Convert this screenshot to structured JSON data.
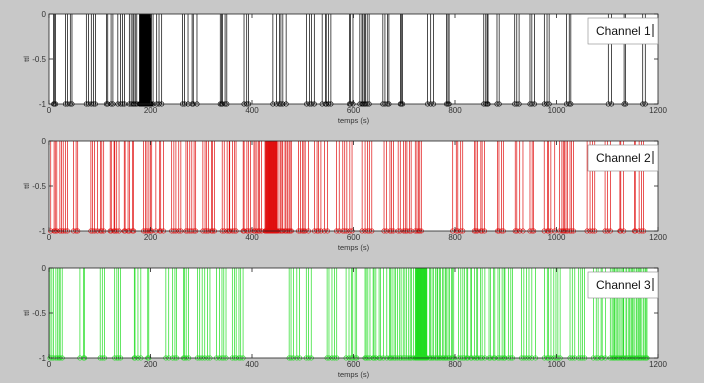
{
  "window": {
    "background": "#c8c8c8"
  },
  "chart_data": [
    {
      "type": "stem",
      "legend": "Channel 1",
      "color": "#000000",
      "xlabel": "temps (s)",
      "ylabel": "ttl",
      "xlim": [
        0,
        1200
      ],
      "ylim": [
        -1,
        0
      ],
      "xticks": [
        "0",
        "200",
        "400",
        "600",
        "800",
        "1000",
        "1200"
      ],
      "yticks": [
        "0",
        "-0.5",
        "-1"
      ],
      "events": [
        {
          "start": 8,
          "end": 14,
          "count": 3
        },
        {
          "start": 28,
          "end": 50,
          "count": 4
        },
        {
          "start": 70,
          "end": 95,
          "count": 5
        },
        {
          "start": 110,
          "end": 130,
          "count": 4
        },
        {
          "start": 135,
          "end": 150,
          "count": 4
        },
        {
          "start": 158,
          "end": 175,
          "count": 6
        },
        {
          "start": 178,
          "end": 202,
          "count": 48
        },
        {
          "start": 205,
          "end": 225,
          "count": 4
        },
        {
          "start": 260,
          "end": 295,
          "count": 6
        },
        {
          "start": 335,
          "end": 352,
          "count": 5
        },
        {
          "start": 383,
          "end": 395,
          "count": 3
        },
        {
          "start": 440,
          "end": 470,
          "count": 6
        },
        {
          "start": 505,
          "end": 525,
          "count": 4
        },
        {
          "start": 538,
          "end": 558,
          "count": 5
        },
        {
          "start": 590,
          "end": 600,
          "count": 3
        },
        {
          "start": 612,
          "end": 632,
          "count": 7
        },
        {
          "start": 655,
          "end": 672,
          "count": 4
        },
        {
          "start": 690,
          "end": 700,
          "count": 3
        },
        {
          "start": 745,
          "end": 760,
          "count": 3
        },
        {
          "start": 782,
          "end": 790,
          "count": 3
        },
        {
          "start": 855,
          "end": 868,
          "count": 4
        },
        {
          "start": 880,
          "end": 892,
          "count": 2
        },
        {
          "start": 915,
          "end": 930,
          "count": 3
        },
        {
          "start": 945,
          "end": 960,
          "count": 3
        },
        {
          "start": 975,
          "end": 990,
          "count": 3
        },
        {
          "start": 1018,
          "end": 1030,
          "count": 3
        },
        {
          "start": 1100,
          "end": 1110,
          "count": 2
        },
        {
          "start": 1130,
          "end": 1140,
          "count": 2
        },
        {
          "start": 1168,
          "end": 1178,
          "count": 2
        }
      ]
    },
    {
      "type": "stem",
      "legend": "Channel 2",
      "color": "#e01010",
      "xlabel": "temps (s)",
      "ylabel": "ttl",
      "xlim": [
        0,
        1200
      ],
      "ylim": [
        -1,
        0
      ],
      "xticks": [
        "0",
        "200",
        "400",
        "600",
        "800",
        "1000",
        "1200"
      ],
      "yticks": [
        "0",
        "-0.5",
        "-1"
      ],
      "events": [
        {
          "start": 3,
          "end": 40,
          "count": 9
        },
        {
          "start": 48,
          "end": 58,
          "count": 3
        },
        {
          "start": 80,
          "end": 112,
          "count": 7
        },
        {
          "start": 118,
          "end": 140,
          "count": 6
        },
        {
          "start": 145,
          "end": 170,
          "count": 6
        },
        {
          "start": 185,
          "end": 205,
          "count": 6
        },
        {
          "start": 210,
          "end": 230,
          "count": 4
        },
        {
          "start": 240,
          "end": 262,
          "count": 5
        },
        {
          "start": 268,
          "end": 292,
          "count": 6
        },
        {
          "start": 300,
          "end": 330,
          "count": 7
        },
        {
          "start": 340,
          "end": 372,
          "count": 8
        },
        {
          "start": 380,
          "end": 398,
          "count": 5
        },
        {
          "start": 402,
          "end": 420,
          "count": 6
        },
        {
          "start": 425,
          "end": 430,
          "count": 4
        },
        {
          "start": 430,
          "end": 450,
          "count": 40
        },
        {
          "start": 452,
          "end": 480,
          "count": 10
        },
        {
          "start": 490,
          "end": 512,
          "count": 6
        },
        {
          "start": 520,
          "end": 550,
          "count": 6
        },
        {
          "start": 565,
          "end": 600,
          "count": 7
        },
        {
          "start": 615,
          "end": 640,
          "count": 5
        },
        {
          "start": 660,
          "end": 682,
          "count": 5
        },
        {
          "start": 688,
          "end": 715,
          "count": 7
        },
        {
          "start": 720,
          "end": 735,
          "count": 5
        },
        {
          "start": 795,
          "end": 818,
          "count": 5
        },
        {
          "start": 835,
          "end": 862,
          "count": 6
        },
        {
          "start": 880,
          "end": 900,
          "count": 4
        },
        {
          "start": 915,
          "end": 935,
          "count": 4
        },
        {
          "start": 945,
          "end": 958,
          "count": 3
        },
        {
          "start": 975,
          "end": 998,
          "count": 5
        },
        {
          "start": 1005,
          "end": 1035,
          "count": 9
        },
        {
          "start": 1060,
          "end": 1080,
          "count": 4
        },
        {
          "start": 1095,
          "end": 1110,
          "count": 3
        },
        {
          "start": 1122,
          "end": 1135,
          "count": 3
        },
        {
          "start": 1150,
          "end": 1175,
          "count": 5
        }
      ]
    },
    {
      "type": "stem",
      "legend": "Channel 3",
      "color": "#22dd22",
      "xlabel": "temps (s)",
      "ylabel": "ttl",
      "xlim": [
        0,
        1200
      ],
      "ylim": [
        -1,
        0
      ],
      "xticks": [
        "0",
        "200",
        "400",
        "600",
        "800",
        "1000",
        "1200"
      ],
      "yticks": [
        "0",
        "-0.5",
        "-1"
      ],
      "events": [
        {
          "start": 2,
          "end": 28,
          "count": 8
        },
        {
          "start": 60,
          "end": 75,
          "count": 3
        },
        {
          "start": 100,
          "end": 112,
          "count": 3
        },
        {
          "start": 128,
          "end": 145,
          "count": 4
        },
        {
          "start": 165,
          "end": 182,
          "count": 4
        },
        {
          "start": 192,
          "end": 200,
          "count": 2
        },
        {
          "start": 230,
          "end": 255,
          "count": 5
        },
        {
          "start": 262,
          "end": 278,
          "count": 4
        },
        {
          "start": 290,
          "end": 320,
          "count": 6
        },
        {
          "start": 330,
          "end": 350,
          "count": 5
        },
        {
          "start": 360,
          "end": 385,
          "count": 6
        },
        {
          "start": 470,
          "end": 495,
          "count": 5
        },
        {
          "start": 505,
          "end": 520,
          "count": 3
        },
        {
          "start": 545,
          "end": 568,
          "count": 5
        },
        {
          "start": 585,
          "end": 610,
          "count": 6
        },
        {
          "start": 620,
          "end": 660,
          "count": 10
        },
        {
          "start": 665,
          "end": 720,
          "count": 16
        },
        {
          "start": 722,
          "end": 745,
          "count": 40
        },
        {
          "start": 748,
          "end": 800,
          "count": 18
        },
        {
          "start": 805,
          "end": 860,
          "count": 14
        },
        {
          "start": 865,
          "end": 915,
          "count": 12
        },
        {
          "start": 930,
          "end": 960,
          "count": 6
        },
        {
          "start": 975,
          "end": 1010,
          "count": 8
        },
        {
          "start": 1025,
          "end": 1060,
          "count": 7
        },
        {
          "start": 1070,
          "end": 1100,
          "count": 6
        },
        {
          "start": 1105,
          "end": 1180,
          "count": 30
        }
      ]
    }
  ]
}
